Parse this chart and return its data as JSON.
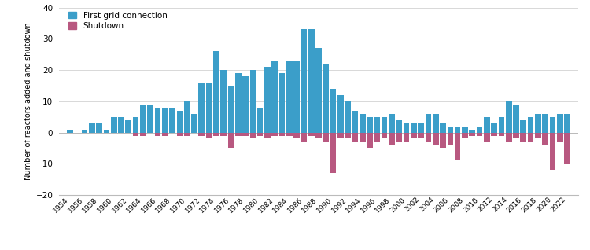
{
  "years": [
    1954,
    1955,
    1956,
    1957,
    1958,
    1959,
    1960,
    1961,
    1962,
    1963,
    1964,
    1965,
    1966,
    1967,
    1968,
    1969,
    1970,
    1971,
    1972,
    1973,
    1974,
    1975,
    1976,
    1977,
    1978,
    1979,
    1980,
    1981,
    1982,
    1983,
    1984,
    1985,
    1986,
    1987,
    1988,
    1989,
    1990,
    1991,
    1992,
    1993,
    1994,
    1995,
    1996,
    1997,
    1998,
    1999,
    2000,
    2001,
    2002,
    2003,
    2004,
    2005,
    2006,
    2007,
    2008,
    2009,
    2010,
    2011,
    2012,
    2013,
    2014,
    2015,
    2016,
    2017,
    2018,
    2019,
    2020,
    2021,
    2022
  ],
  "first_grid": [
    1,
    0,
    1,
    3,
    3,
    1,
    5,
    5,
    4,
    5,
    9,
    9,
    8,
    8,
    8,
    7,
    10,
    6,
    16,
    16,
    26,
    20,
    15,
    19,
    18,
    20,
    8,
    21,
    23,
    19,
    23,
    23,
    33,
    33,
    27,
    22,
    14,
    12,
    10,
    7,
    6,
    5,
    5,
    5,
    6,
    4,
    3,
    3,
    3,
    6,
    6,
    3,
    2,
    2,
    2,
    1,
    2,
    5,
    3,
    5,
    10,
    9,
    4,
    5,
    6,
    6,
    5,
    6,
    6
  ],
  "shutdown": [
    0,
    0,
    0,
    0,
    0,
    0,
    0,
    0,
    0,
    -1,
    -1,
    0,
    -1,
    -1,
    0,
    -1,
    -1,
    0,
    -1,
    -2,
    -1,
    -1,
    -5,
    -1,
    -1,
    -2,
    -1,
    -2,
    -1,
    -1,
    -1,
    -2,
    -3,
    -1,
    -2,
    -3,
    -13,
    -2,
    -2,
    -3,
    -3,
    -5,
    -3,
    -2,
    -4,
    -3,
    -3,
    -2,
    -2,
    -3,
    -4,
    -5,
    -4,
    -9,
    -2,
    -1,
    -1,
    -3,
    -1,
    -1,
    -3,
    -2,
    -3,
    -3,
    -2,
    -4,
    -12,
    -3,
    -10
  ],
  "blue_color": "#3b9ec9",
  "pink_color": "#b85880",
  "ylabel": "Number of reactors added and shutdown",
  "legend_blue": "First grid connection",
  "legend_pink": "Shutdown",
  "ylim_min": -20,
  "ylim_max": 40,
  "yticks": [
    -20,
    -10,
    0,
    10,
    20,
    30,
    40
  ],
  "xtick_years": [
    1954,
    1956,
    1958,
    1960,
    1962,
    1964,
    1966,
    1968,
    1970,
    1972,
    1974,
    1976,
    1978,
    1980,
    1982,
    1984,
    1986,
    1988,
    1990,
    1992,
    1994,
    1996,
    1998,
    2000,
    2002,
    2004,
    2006,
    2008,
    2010,
    2012,
    2014,
    2016,
    2018,
    2020,
    2022
  ],
  "background_color": "#ffffff",
  "grid_color": "#d8d8d8"
}
